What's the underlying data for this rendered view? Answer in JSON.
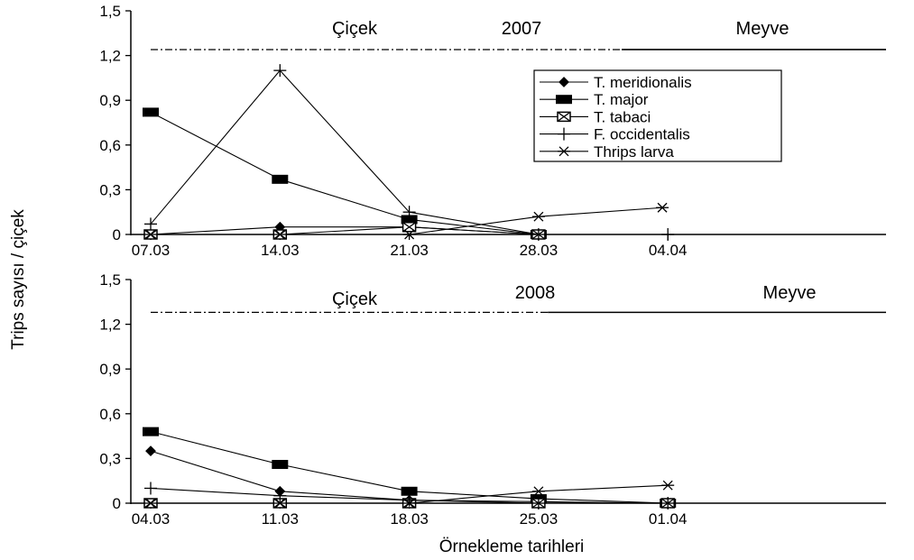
{
  "figure": {
    "ylabel": "Trips sayısı / çiçek",
    "xlabel": "Örnekleme tarihleri"
  },
  "legend": {
    "placement": "top-right of upper panel",
    "entries": [
      {
        "name": "T. meridionalis",
        "marker": "diamond-icon"
      },
      {
        "name": "T. major",
        "marker": "square-icon"
      },
      {
        "name": "T. tabaci",
        "marker": "crossed-square-icon"
      },
      {
        "name": "F. occidentalis",
        "marker": "plus-icon"
      },
      {
        "name": "Thrips larva",
        "marker": "asterisk-icon"
      }
    ]
  },
  "chart_data": [
    {
      "type": "line",
      "year_label": "2007",
      "phase_labels": {
        "flower": "Çiçek",
        "fruit": "Meyve"
      },
      "categories": [
        "07.03",
        "14.03",
        "21.03",
        "28.03",
        "04.04"
      ],
      "x_ticks": [
        "07.03",
        "14.03",
        "21.03",
        "28.03",
        "04.04"
      ],
      "ylim": [
        0,
        1.5
      ],
      "y_ticks": [
        "0",
        "0,3",
        "0,6",
        "0,9",
        "1,2",
        "1,5"
      ],
      "y_tick_values": [
        0,
        0.3,
        0.6,
        0.9,
        1.2,
        1.5
      ],
      "phase_line": {
        "level": 1.24,
        "flower_end_day": 25.5
      },
      "series": [
        {
          "name": "T. meridionalis",
          "x": [
            0,
            7,
            14,
            21
          ],
          "values": [
            0,
            0.05,
            0.05,
            0
          ]
        },
        {
          "name": "T. major",
          "x": [
            0,
            7,
            14,
            21
          ],
          "values": [
            0.82,
            0.37,
            0.1,
            0
          ]
        },
        {
          "name": "T. tabaci",
          "x": [
            0,
            7,
            14,
            21
          ],
          "values": [
            0,
            0,
            0.05,
            0
          ]
        },
        {
          "name": "F. occidentalis",
          "x": [
            0,
            7,
            14,
            21,
            28
          ],
          "values": [
            0.07,
            1.1,
            0.15,
            0,
            0
          ]
        },
        {
          "name": "Thrips larva",
          "x": [
            0,
            7,
            14,
            21,
            27.7
          ],
          "values": [
            0,
            0,
            0,
            0.12,
            0.18
          ]
        }
      ],
      "grid": false,
      "legend": true
    },
    {
      "type": "line",
      "year_label": "2008",
      "phase_labels": {
        "flower": "Çiçek",
        "fruit": "Meyve"
      },
      "categories": [
        "04.03",
        "11.03",
        "18.03",
        "25.03",
        "01.04"
      ],
      "x_ticks": [
        "04.03",
        "11.03",
        "18.03",
        "25.03",
        "01.04"
      ],
      "ylim": [
        0,
        1.5
      ],
      "y_ticks": [
        "0",
        "0,3",
        "0,6",
        "0,9",
        "1,2",
        "1,5"
      ],
      "y_tick_values": [
        0,
        0.3,
        0.6,
        0.9,
        1.2,
        1.5
      ],
      "phase_line": {
        "level": 1.28,
        "flower_end_day": 21.5
      },
      "series": [
        {
          "name": "T. meridionalis",
          "x": [
            0,
            7,
            14,
            21,
            28
          ],
          "values": [
            0.35,
            0.08,
            0.02,
            0.01,
            0
          ]
        },
        {
          "name": "T. major",
          "x": [
            0,
            7,
            14,
            21,
            28
          ],
          "values": [
            0.48,
            0.26,
            0.08,
            0.03,
            0
          ]
        },
        {
          "name": "T. tabaci",
          "x": [
            0,
            7,
            14,
            21,
            28
          ],
          "values": [
            0,
            0,
            0,
            0,
            0
          ]
        },
        {
          "name": "F. occidentalis",
          "x": [
            0,
            7,
            14,
            21,
            28
          ],
          "values": [
            0.1,
            0.05,
            0.02,
            0,
            0
          ]
        },
        {
          "name": "Thrips larva",
          "x": [
            0,
            7,
            14,
            21,
            28
          ],
          "values": [
            0,
            0,
            0,
            0.08,
            0.12
          ]
        }
      ],
      "grid": false,
      "legend": false
    }
  ]
}
